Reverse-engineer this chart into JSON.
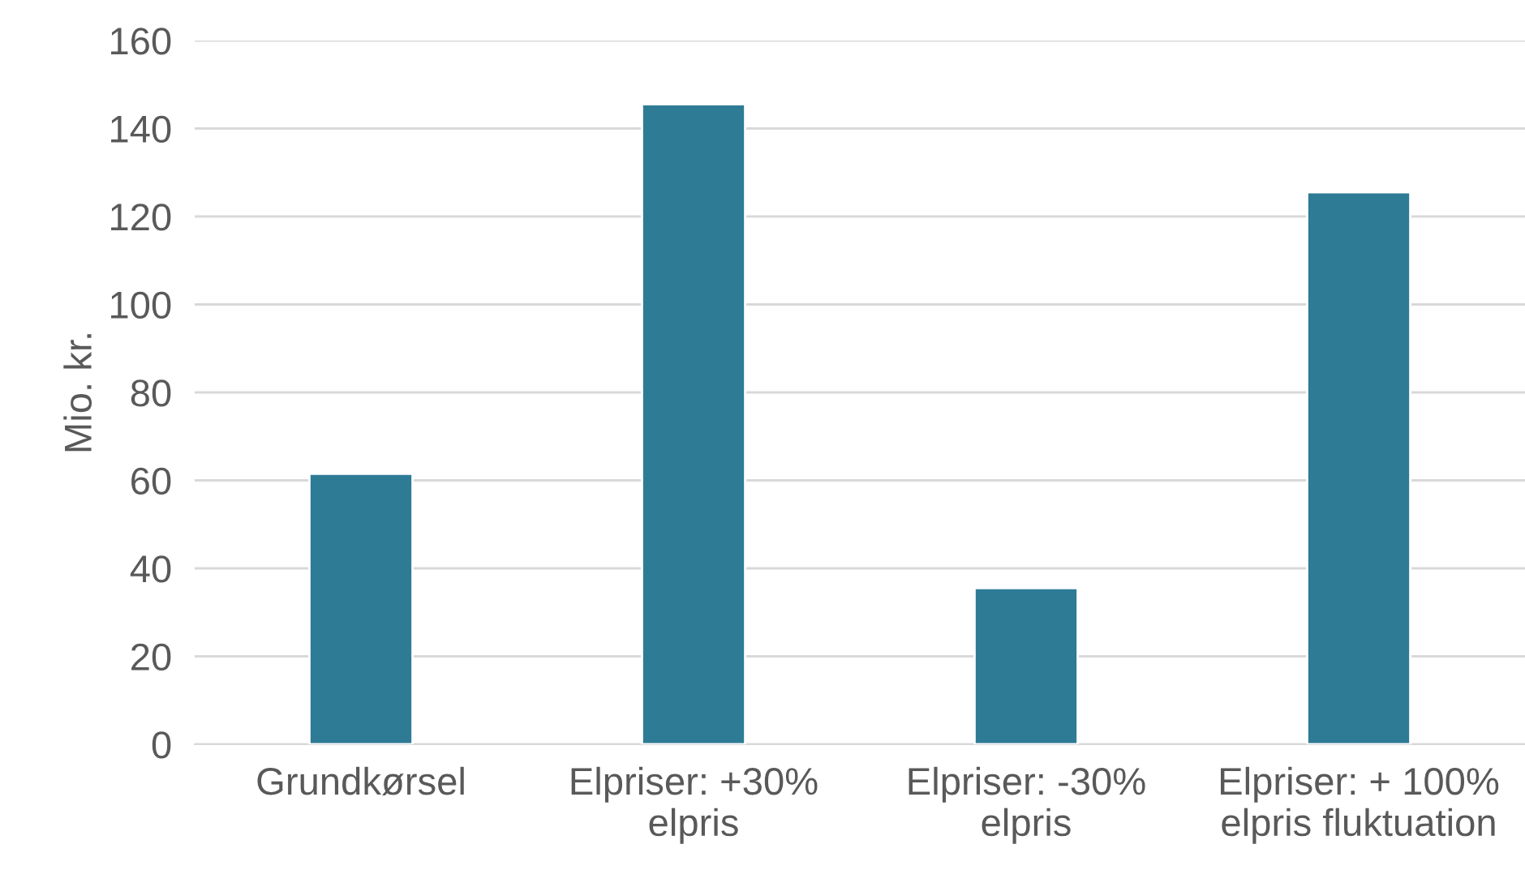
{
  "chart_data": {
    "type": "bar",
    "ylabel": "Mio. kr.",
    "categories": [
      "Grundkørsel",
      "Elpriser: +30%\nelpris",
      "Elpriser: -30%\nelpris",
      "Elpriser: + 100%\nelpris fluktuation"
    ],
    "values": [
      61.5,
      145.5,
      35.5,
      125.5
    ],
    "color": "#2e7b96",
    "ylim": [
      0,
      160
    ],
    "yticks": [
      0,
      20,
      40,
      60,
      80,
      100,
      120,
      140,
      160
    ],
    "grid": "y"
  }
}
